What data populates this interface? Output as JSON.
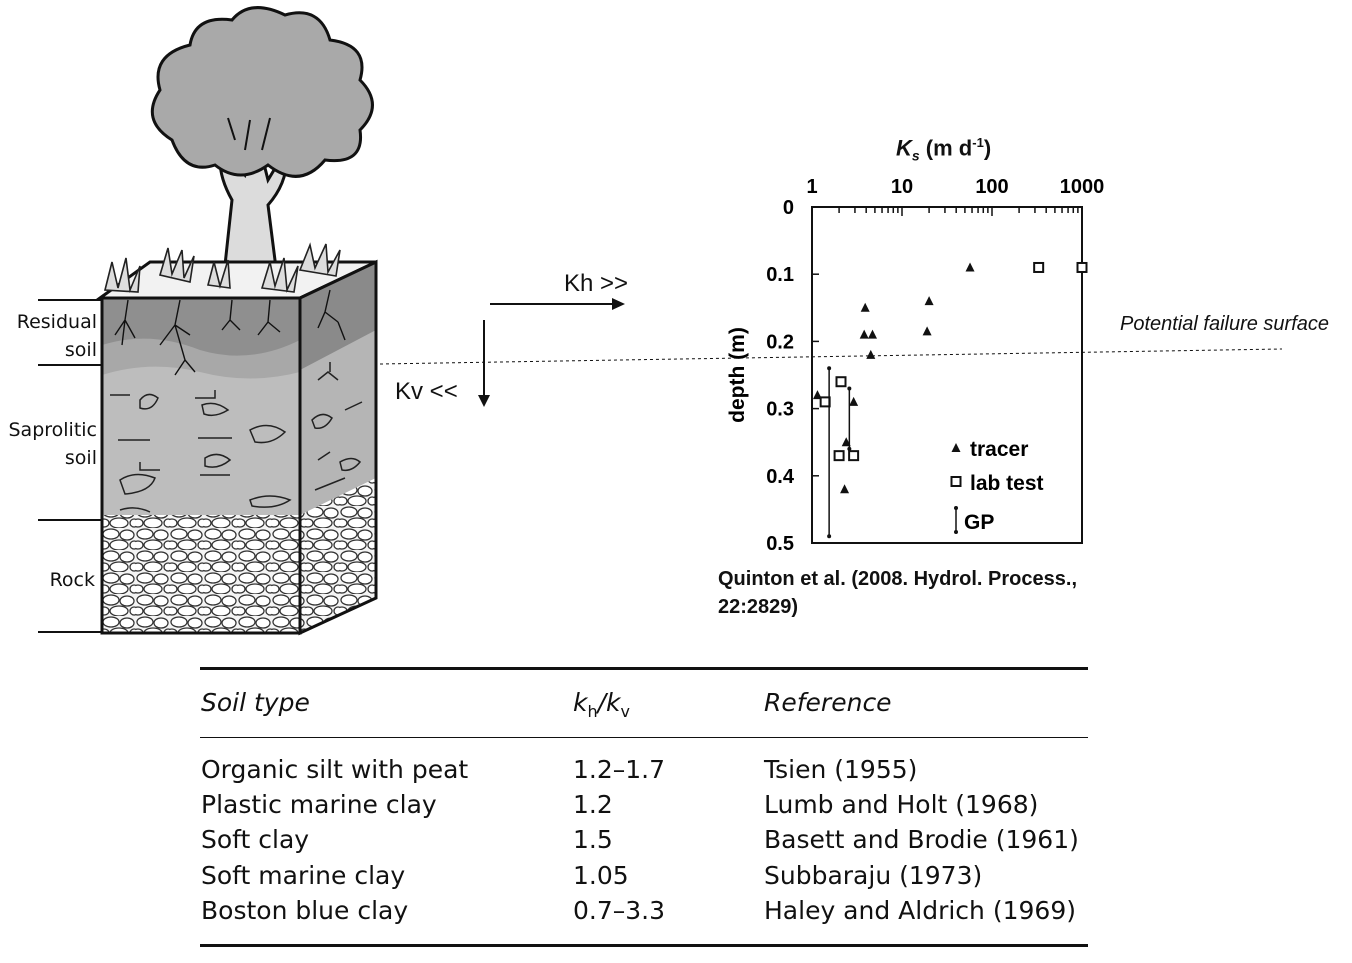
{
  "diagram": {
    "layers": [
      {
        "lines": [
          "Residual",
          "soil"
        ]
      },
      {
        "lines": [
          "Saprolitic",
          "soil"
        ]
      },
      {
        "lines": [
          "Rock"
        ]
      }
    ],
    "arrows": {
      "horizontal_label": "Kh >>",
      "vertical_label": "Kv <<"
    },
    "failure_surface_label": "Potential failure surface"
  },
  "chart_data": {
    "type": "scatter",
    "title": "Ks (m d-1)",
    "title_main": "K",
    "title_sub": "s",
    "title_rest": " (m d",
    "title_sup": "-1",
    "title_close": ")",
    "xscale": "log",
    "xlim": [
      1,
      1000
    ],
    "x_ticks": [
      "1",
      "10",
      "100",
      "1000"
    ],
    "x_tick_values": [
      1,
      10,
      100,
      1000
    ],
    "ylabel": "depth (m)",
    "ylim": [
      0,
      0.5
    ],
    "y_ticks": [
      "0",
      "0.1",
      "0.2",
      "0.3",
      "0.4",
      "0.5"
    ],
    "y_tick_values": [
      0,
      0.1,
      0.2,
      0.3,
      0.4,
      0.5
    ],
    "series": [
      {
        "name": "tracer",
        "marker": "triangle",
        "points": [
          [
            1.15,
            0.28
          ],
          [
            2.4,
            0.35
          ],
          [
            2.3,
            0.42
          ],
          [
            2.9,
            0.29
          ],
          [
            3.9,
            0.15
          ],
          [
            3.8,
            0.19
          ],
          [
            4.7,
            0.19
          ],
          [
            4.5,
            0.22
          ],
          [
            20,
            0.14
          ],
          [
            19,
            0.185
          ],
          [
            57,
            0.09
          ]
        ]
      },
      {
        "name": "lab test",
        "marker": "square",
        "points": [
          [
            1.4,
            0.29
          ],
          [
            2.1,
            0.26
          ],
          [
            2.0,
            0.37
          ],
          [
            2.9,
            0.37
          ],
          [
            330,
            0.09
          ],
          [
            1000,
            0.09
          ]
        ]
      },
      {
        "name": "GP",
        "marker": "range",
        "ranges": [
          [
            1.55,
            0.24,
            0.49
          ],
          [
            2.6,
            0.27,
            0.36
          ]
        ]
      }
    ],
    "legend_position": "bottom-right",
    "citation": [
      "Quinton et al. (2008. Hydrol. Process.,",
      "22:2829)"
    ]
  },
  "table": {
    "headers": {
      "soil_type": "Soil type",
      "ratio_k": "k",
      "ratio_h": "h",
      "ratio_slash": "/k",
      "ratio_v": "v",
      "reference": "Reference"
    },
    "rows": [
      {
        "soil": "Organic silt with peat",
        "ratio": "1.2–1.7",
        "reference": "Tsien (1955)"
      },
      {
        "soil": "Plastic marine clay",
        "ratio": "1.2",
        "reference": "Lumb and Holt (1968)"
      },
      {
        "soil": "Soft clay",
        "ratio": "1.5",
        "reference": "Basett and Brodie (1961)"
      },
      {
        "soil": "Soft marine clay",
        "ratio": "1.05",
        "reference": "Subbaraju (1973)"
      },
      {
        "soil": "Boston blue clay",
        "ratio": "0.7–3.3",
        "reference": "Haley and Aldrich (1969)"
      }
    ]
  }
}
